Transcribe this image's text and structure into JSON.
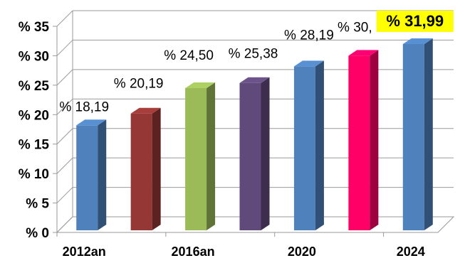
{
  "chart_data": {
    "type": "bar",
    "title": "",
    "xlabel": "",
    "ylabel": "",
    "ylim": [
      0,
      35
    ],
    "y_ticks": [
      0,
      5,
      10,
      15,
      20,
      25,
      30,
      35
    ],
    "y_tick_labels": [
      "% 0",
      "% 5",
      "% 10",
      "% 15",
      "% 20",
      "% 25",
      "% 30",
      "% 35"
    ],
    "grid": true,
    "legend": "none",
    "three_d": true,
    "categories": [
      "2012an",
      "",
      "2016an",
      "",
      "2020",
      "",
      "2024"
    ],
    "values": [
      18.19,
      20.19,
      24.5,
      25.38,
      28.19,
      30,
      31.99
    ],
    "data_labels": [
      "% 18,19",
      "% 20,19",
      "% 24,50",
      "% 25,38",
      "% 28,19",
      "% 30,",
      "% 31,99"
    ],
    "highlight_label_index": 6,
    "highlight_color": "#ffff00",
    "colors": [
      "#4f81bd",
      "#953735",
      "#9bbb59",
      "#604a7b",
      "#4f81bd",
      "#ff0066",
      "#4f81bd"
    ]
  }
}
